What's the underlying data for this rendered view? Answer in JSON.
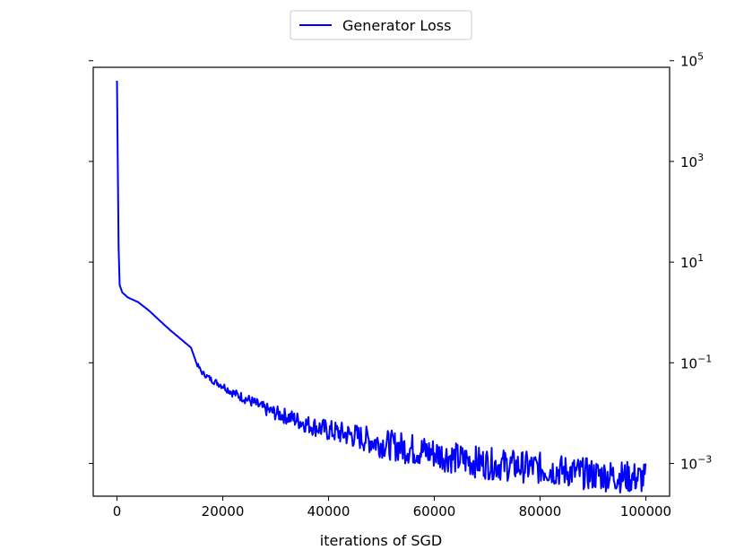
{
  "chart_data": {
    "type": "line",
    "xlabel": "iterations of SGD",
    "ylabel": "",
    "yscale": "log",
    "yaxis_side": "right",
    "xlim": [
      -4500,
      104500
    ],
    "ylim_log10": [
      -3.65,
      4.87
    ],
    "x_ticks": [
      0,
      20000,
      40000,
      60000,
      80000,
      100000
    ],
    "x_tick_labels": [
      "0",
      "20000",
      "40000",
      "60000",
      "80000",
      "100000"
    ],
    "y_ticks_log10": [
      -3,
      -1,
      1,
      3,
      5
    ],
    "y_tick_labels": [
      {
        "base": "10",
        "exp": "−3"
      },
      {
        "base": "10",
        "exp": "−1"
      },
      {
        "base": "10",
        "exp": "1"
      },
      {
        "base": "10",
        "exp": "3"
      },
      {
        "base": "10",
        "exp": "5"
      }
    ],
    "grid": false,
    "legend_position": "top-center",
    "series": [
      {
        "name": "Generator Loss",
        "color": "#0000ff",
        "x": [
          0,
          300,
          500,
          1000,
          2000,
          4000,
          6000,
          8000,
          10000,
          12000,
          14000,
          15000,
          16000,
          18000,
          20000,
          22000,
          25000,
          28000,
          30000,
          33000,
          36000,
          40000,
          45000,
          50000,
          55000,
          60000,
          65000,
          70000,
          75000,
          80000,
          85000,
          90000,
          95000,
          100000
        ],
        "y": [
          40000,
          20,
          3.5,
          2.5,
          2.0,
          1.6,
          1.1,
          0.7,
          0.45,
          0.3,
          0.2,
          0.1,
          0.065,
          0.045,
          0.035,
          0.025,
          0.018,
          0.012,
          0.01,
          0.008,
          0.006,
          0.0045,
          0.0035,
          0.0025,
          0.002,
          0.0016,
          0.0012,
          0.001,
          0.0009,
          0.0008,
          0.0007,
          0.0006,
          0.00055,
          0.0005
        ]
      }
    ]
  }
}
